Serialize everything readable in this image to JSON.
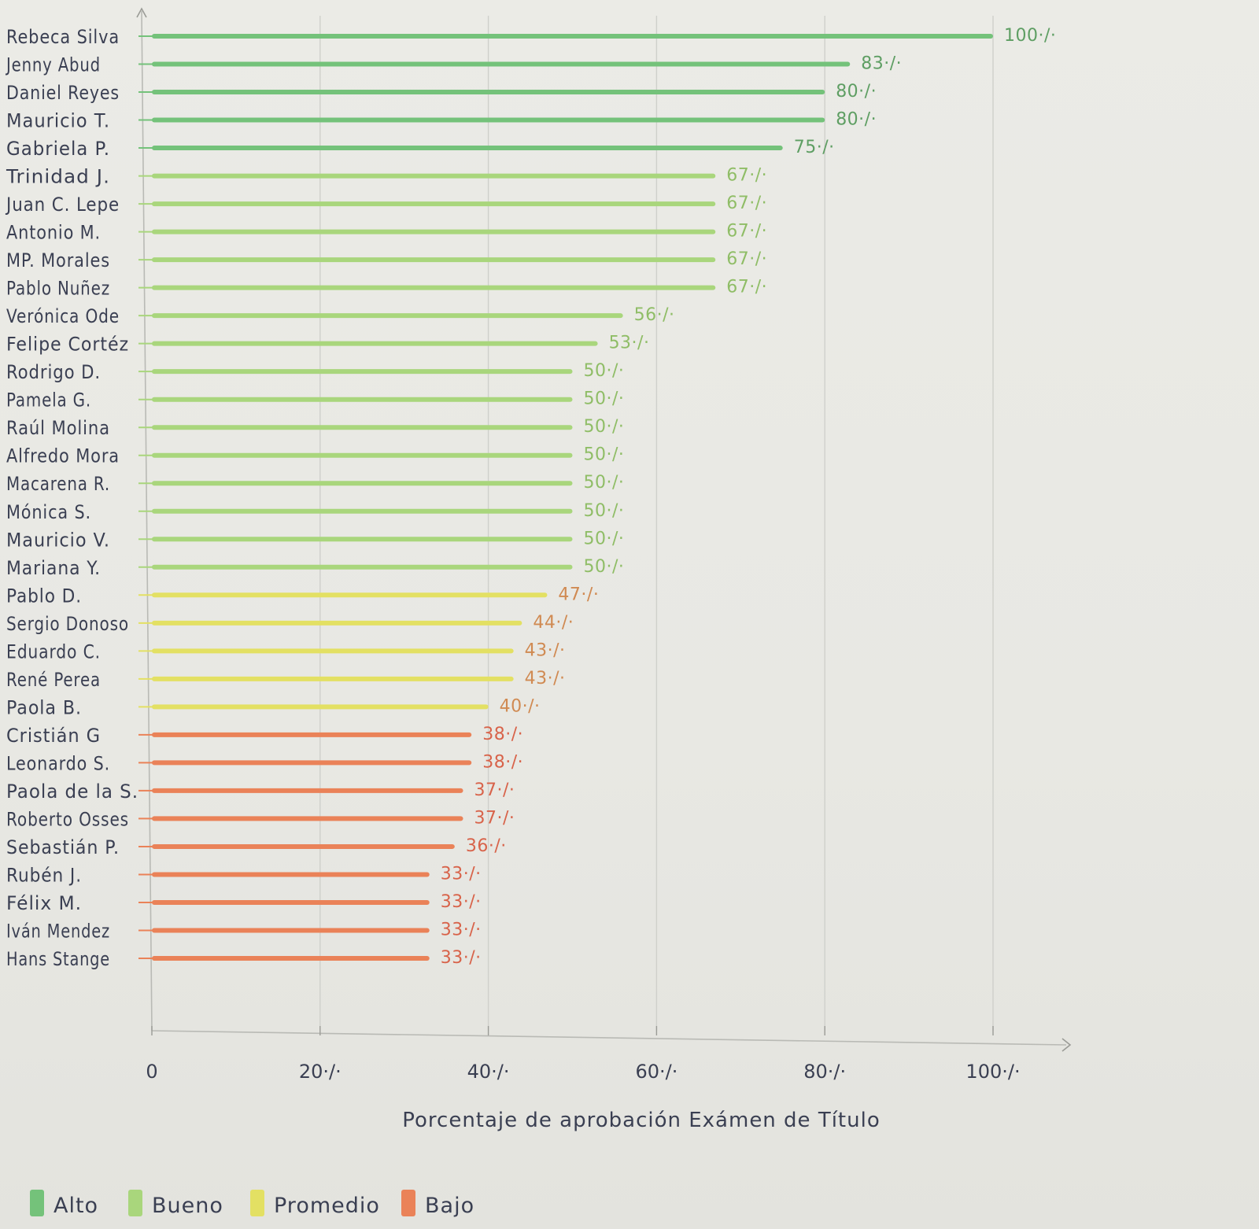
{
  "chart_data": {
    "type": "bar",
    "orientation": "horizontal",
    "xlabel": "Porcentaje de aprobación Exámen de Título",
    "xlim": [
      0,
      100
    ],
    "x_ticks": [
      {
        "value": 0,
        "label": "0"
      },
      {
        "value": 20,
        "label": "20·/·"
      },
      {
        "value": 40,
        "label": "40·/·"
      },
      {
        "value": 60,
        "label": "60·/·"
      },
      {
        "value": 80,
        "label": "80·/·"
      },
      {
        "value": 100,
        "label": "100·/·"
      }
    ],
    "grid": "vertical",
    "legend_position": "bottom-left",
    "colors": {
      "Alto": "#74c27a",
      "Bueno": "#a9d67c",
      "Promedio": "#e3e063",
      "Bajo": "#ea8258"
    },
    "label_colors": {
      "Alto": "#5e9e63",
      "Bueno": "#8fbd66",
      "Promedio": "#d08a52",
      "Bajo": "#d8634a"
    },
    "legend": [
      {
        "name": "Alto"
      },
      {
        "name": "Bueno"
      },
      {
        "name": "Promedio"
      },
      {
        "name": "Bajo"
      }
    ],
    "bars": [
      {
        "name": "Rebeca Silva",
        "value": 100,
        "label": "100·/·",
        "group": "Alto"
      },
      {
        "name": "Jenny Abud",
        "value": 83,
        "label": "83·/·",
        "group": "Alto"
      },
      {
        "name": "Daniel Reyes",
        "value": 80,
        "label": "80·/·",
        "group": "Alto"
      },
      {
        "name": "Mauricio T.",
        "value": 80,
        "label": "80·/·",
        "group": "Alto"
      },
      {
        "name": "Gabriela P.",
        "value": 75,
        "label": "75·/·",
        "group": "Alto"
      },
      {
        "name": "Trinidad J.",
        "value": 67,
        "label": "67·/·",
        "group": "Bueno"
      },
      {
        "name": "Juan C. Lepe",
        "value": 67,
        "label": "67·/·",
        "group": "Bueno"
      },
      {
        "name": "Antonio M.",
        "value": 67,
        "label": "67·/·",
        "group": "Bueno"
      },
      {
        "name": "MP. Morales",
        "value": 67,
        "label": "67·/·",
        "group": "Bueno"
      },
      {
        "name": "Pablo Nuñez",
        "value": 67,
        "label": "67·/·",
        "group": "Bueno"
      },
      {
        "name": "Verónica Ode",
        "value": 56,
        "label": "56·/·",
        "group": "Bueno"
      },
      {
        "name": "Felipe Cortéz",
        "value": 53,
        "label": "53·/·",
        "group": "Bueno"
      },
      {
        "name": "Rodrigo D.",
        "value": 50,
        "label": "50·/·",
        "group": "Bueno"
      },
      {
        "name": "Pamela G.",
        "value": 50,
        "label": "50·/·",
        "group": "Bueno"
      },
      {
        "name": "Raúl Molina",
        "value": 50,
        "label": "50·/·",
        "group": "Bueno"
      },
      {
        "name": "Alfredo Mora",
        "value": 50,
        "label": "50·/·",
        "group": "Bueno"
      },
      {
        "name": "Macarena R.",
        "value": 50,
        "label": "50·/·",
        "group": "Bueno"
      },
      {
        "name": "Mónica S.",
        "value": 50,
        "label": "50·/·",
        "group": "Bueno"
      },
      {
        "name": "Mauricio V.",
        "value": 50,
        "label": "50·/·",
        "group": "Bueno"
      },
      {
        "name": "Mariana Y.",
        "value": 50,
        "label": "50·/·",
        "group": "Bueno"
      },
      {
        "name": "Pablo D.",
        "value": 47,
        "label": "47·/·",
        "group": "Promedio"
      },
      {
        "name": "Sergio Donoso",
        "value": 44,
        "label": "44·/·",
        "group": "Promedio"
      },
      {
        "name": "Eduardo C.",
        "value": 43,
        "label": "43·/·",
        "group": "Promedio"
      },
      {
        "name": "René Perea",
        "value": 43,
        "label": "43·/·",
        "group": "Promedio"
      },
      {
        "name": "Paola B.",
        "value": 40,
        "label": "40·/·",
        "group": "Promedio"
      },
      {
        "name": "Cristián G",
        "value": 38,
        "label": "38·/·",
        "group": "Bajo"
      },
      {
        "name": "Leonardo S.",
        "value": 38,
        "label": "38·/·",
        "group": "Bajo"
      },
      {
        "name": "Paola de la S.",
        "value": 37,
        "label": "37·/·",
        "group": "Bajo"
      },
      {
        "name": "Roberto Osses",
        "value": 37,
        "label": "37·/·",
        "group": "Bajo"
      },
      {
        "name": "Sebastián P.",
        "value": 36,
        "label": "36·/·",
        "group": "Bajo"
      },
      {
        "name": "Rubén J.",
        "value": 33,
        "label": "33·/·",
        "group": "Bajo"
      },
      {
        "name": "Félix M.",
        "value": 33,
        "label": "33·/·",
        "group": "Bajo"
      },
      {
        "name": "Iván Mendez",
        "value": 33,
        "label": "33·/·",
        "group": "Bajo"
      },
      {
        "name": "Hans Stange",
        "value": 33,
        "label": "33·/·",
        "group": "Bajo"
      }
    ]
  }
}
